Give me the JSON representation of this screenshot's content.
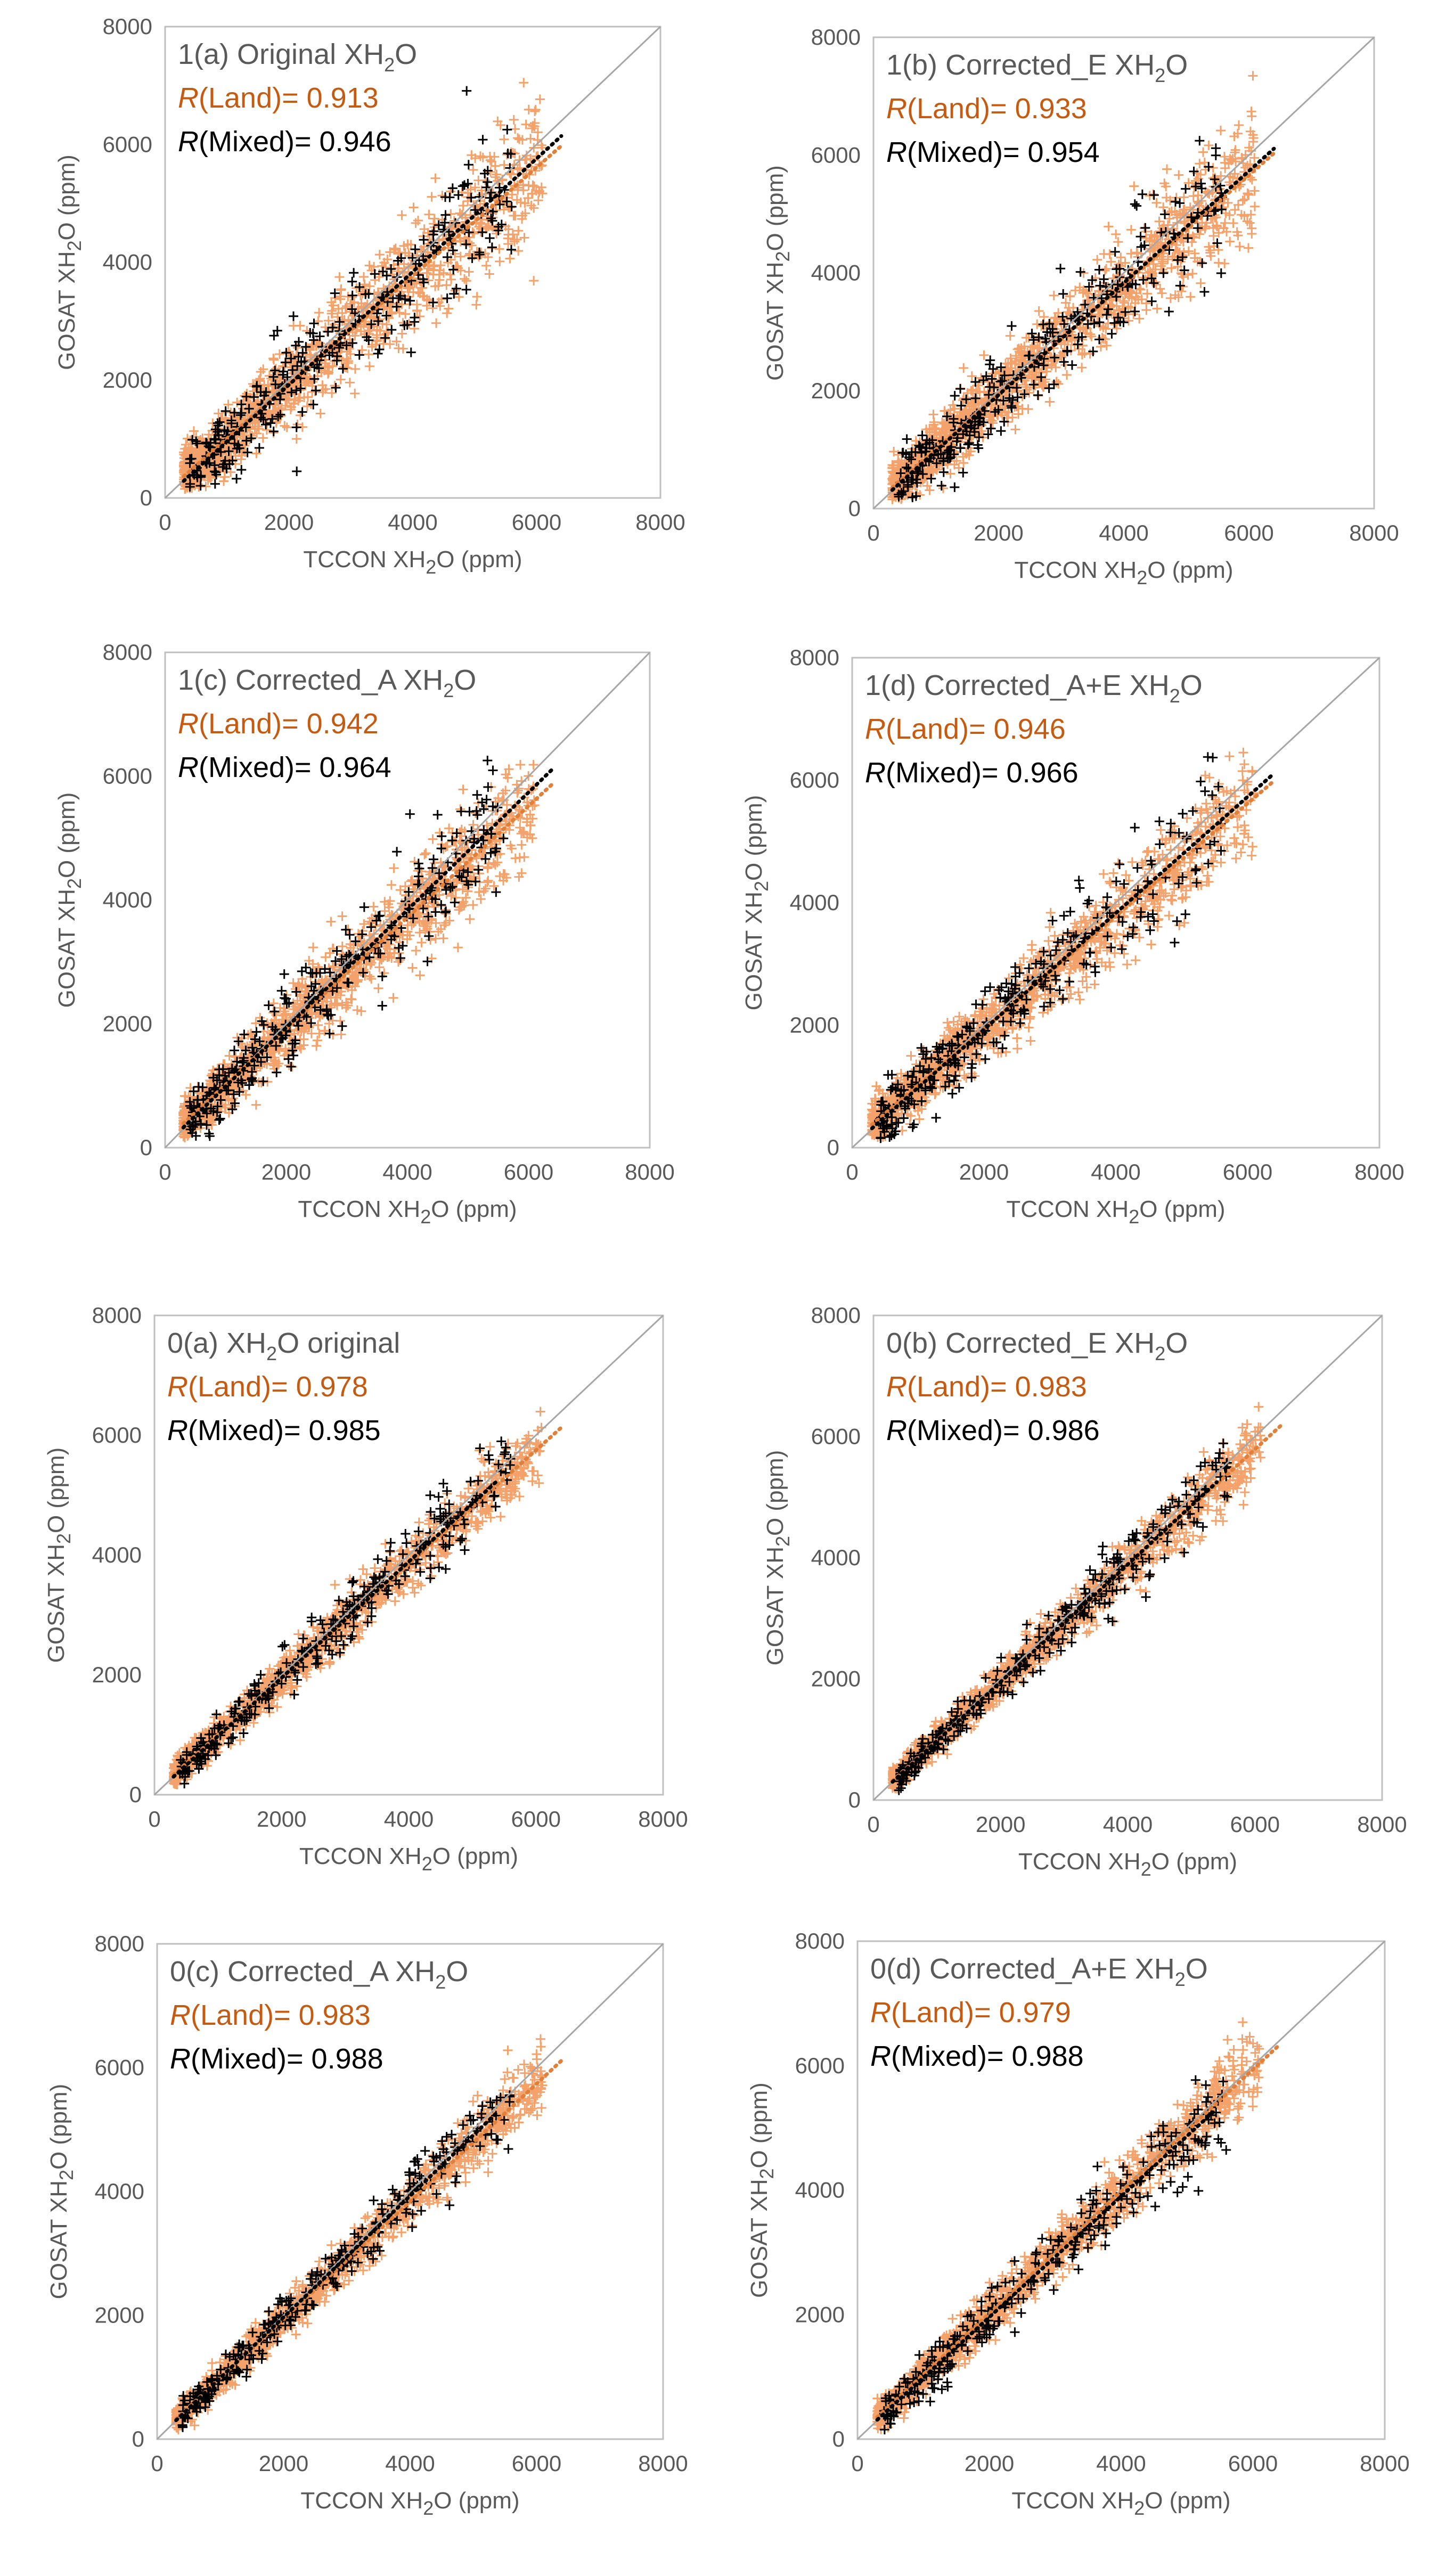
{
  "colors": {
    "land": "#f4a26b",
    "land_text": "#c55a11",
    "land_trend": "#e0803a",
    "mixed": "#000000",
    "one_to_one": "#a6a6a6",
    "frame": "#bfbfbf",
    "text": "#595959"
  },
  "chart_data": [
    {
      "id": "1a",
      "type": "scatter",
      "title_prefix": "1(a) Original XH",
      "title_sub": "2",
      "title_suffix": "O",
      "land_label": "R",
      "land_value": "(Land)= 0.913",
      "mixed_label": "R",
      "mixed_value": "(Mixed)= 0.946",
      "r_land": 0.913,
      "r_mixed": 0.946,
      "xlabel_prefix": "TCCON XH",
      "xlabel_sub": "2",
      "xlabel_suffix": "O (ppm)",
      "ylabel_prefix": "GOSAT XH",
      "ylabel_sub": "2",
      "ylabel_suffix": "O (ppm)",
      "xlim": [
        0,
        8000
      ],
      "ylim": [
        0,
        8000
      ],
      "xticks": [
        "0",
        "2000",
        "4000",
        "6000",
        "8000"
      ],
      "yticks": [
        "0",
        "2000",
        "4000",
        "6000",
        "8000"
      ],
      "trend_land": {
        "slope": 0.92,
        "intercept": 90,
        "x_end": 6400
      },
      "trend_mixed": {
        "slope": 0.96,
        "intercept": 0,
        "x_end": 6400
      },
      "scatter_spread": 430,
      "one_to_one": true
    },
    {
      "id": "1b",
      "type": "scatter",
      "title_prefix": "1(b) Corrected_E XH",
      "title_sub": "2",
      "title_suffix": "O",
      "land_label": "R",
      "land_value": "(Land)= 0.933",
      "mixed_label": "R",
      "mixed_value": "(Mixed)= 0.954",
      "r_land": 0.933,
      "r_mixed": 0.954,
      "xlabel_prefix": "TCCON XH",
      "xlabel_sub": "2",
      "xlabel_suffix": "O (ppm)",
      "ylabel_prefix": "GOSAT XH",
      "ylabel_sub": "2",
      "ylabel_suffix": "O (ppm)",
      "xlim": [
        0,
        8000
      ],
      "ylim": [
        0,
        8000
      ],
      "xticks": [
        "0",
        "2000",
        "4000",
        "6000",
        "8000"
      ],
      "yticks": [
        "0",
        "2000",
        "4000",
        "6000",
        "8000"
      ],
      "trend_land": {
        "slope": 0.93,
        "intercept": 80,
        "x_end": 6400
      },
      "trend_mixed": {
        "slope": 0.95,
        "intercept": 30,
        "x_end": 6400
      },
      "scatter_spread": 380,
      "one_to_one": true
    },
    {
      "id": "1c",
      "type": "scatter",
      "title_prefix": "1(c) Corrected_A XH",
      "title_sub": "2",
      "title_suffix": "O",
      "land_label": "R",
      "land_value": "(Land)= 0.942",
      "mixed_label": "R",
      "mixed_value": "(Mixed)= 0.964",
      "r_land": 0.942,
      "r_mixed": 0.964,
      "xlabel_prefix": "TCCON XH",
      "xlabel_sub": "2",
      "xlabel_suffix": "O (ppm)",
      "ylabel_prefix": "GOSAT XH",
      "ylabel_sub": "2",
      "ylabel_suffix": "O (ppm)",
      "xlim": [
        0,
        8000
      ],
      "ylim": [
        0,
        8000
      ],
      "xticks": [
        "0",
        "2000",
        "4000",
        "6000",
        "8000"
      ],
      "yticks": [
        "0",
        "2000",
        "4000",
        "6000",
        "8000"
      ],
      "trend_land": {
        "slope": 0.9,
        "intercept": 120,
        "x_end": 6400
      },
      "trend_mixed": {
        "slope": 0.95,
        "intercept": 40,
        "x_end": 6400
      },
      "scatter_spread": 340,
      "one_to_one": true
    },
    {
      "id": "1d",
      "type": "scatter",
      "title_prefix": "1(d) Corrected_A+E XH",
      "title_sub": "2",
      "title_suffix": "O",
      "land_label": "R",
      "land_value": "(Land)= 0.946",
      "mixed_label": "R",
      "mixed_value": "(Mixed)= 0.966",
      "r_land": 0.946,
      "r_mixed": 0.966,
      "xlabel_prefix": "TCCON XH",
      "xlabel_sub": "2",
      "xlabel_suffix": "O (ppm)",
      "ylabel_prefix": "GOSAT XH",
      "ylabel_sub": "2",
      "ylabel_suffix": "O (ppm)",
      "xlim": [
        0,
        8000
      ],
      "ylim": [
        0,
        8000
      ],
      "xticks": [
        "0",
        "2000",
        "4000",
        "6000",
        "8000"
      ],
      "yticks": [
        "0",
        "2000",
        "4000",
        "6000",
        "8000"
      ],
      "trend_land": {
        "slope": 0.92,
        "intercept": 100,
        "x_end": 6400
      },
      "trend_mixed": {
        "slope": 0.95,
        "intercept": 30,
        "x_end": 6400
      },
      "scatter_spread": 330,
      "one_to_one": true
    },
    {
      "id": "0a",
      "type": "scatter",
      "title_prefix": "0(a) XH",
      "title_sub": "2",
      "title_suffix": "O original",
      "land_label": "R",
      "land_value": "(Land)= 0.978",
      "mixed_label": "R",
      "mixed_value": "(Mixed)= 0.985",
      "r_land": 0.978,
      "r_mixed": 0.985,
      "xlabel_prefix": "TCCON XH",
      "xlabel_sub": "2",
      "xlabel_suffix": "O (ppm)",
      "ylabel_prefix": "GOSAT XH",
      "ylabel_sub": "2",
      "ylabel_suffix": "O (ppm)",
      "xlim": [
        0,
        8000
      ],
      "ylim": [
        0,
        8000
      ],
      "xticks": [
        "0",
        "2000",
        "4000",
        "6000",
        "8000"
      ],
      "yticks": [
        "0",
        "2000",
        "4000",
        "6000",
        "8000"
      ],
      "trend_land": {
        "slope": 0.95,
        "intercept": 50,
        "x_end": 6400
      },
      "trend_mixed": {
        "slope": 0.97,
        "intercept": 10,
        "x_end": 5400
      },
      "scatter_spread": 210,
      "one_to_one": true
    },
    {
      "id": "0b",
      "type": "scatter",
      "title_prefix": "0(b) Corrected_E  XH",
      "title_sub": "2",
      "title_suffix": "O",
      "land_label": "R",
      "land_value": "(Land)= 0.983",
      "mixed_label": "R",
      "mixed_value": "(Mixed)= 0.986",
      "r_land": 0.983,
      "r_mixed": 0.986,
      "xlabel_prefix": "TCCON XH",
      "xlabel_sub": "2",
      "xlabel_suffix": "O (ppm)",
      "ylabel_prefix": "GOSAT XH",
      "ylabel_sub": "2",
      "ylabel_suffix": "O (ppm)",
      "xlim": [
        0,
        8000
      ],
      "ylim": [
        0,
        8000
      ],
      "xticks": [
        "0",
        "2000",
        "4000",
        "6000",
        "8000"
      ],
      "yticks": [
        "0",
        "2000",
        "4000",
        "6000",
        "8000"
      ],
      "trend_land": {
        "slope": 0.96,
        "intercept": 30,
        "x_end": 6400
      },
      "trend_mixed": {
        "slope": 0.97,
        "intercept": 10,
        "x_end": 5400
      },
      "scatter_spread": 190,
      "one_to_one": true
    },
    {
      "id": "0c",
      "type": "scatter",
      "title_prefix": "0(c) Corrected_A XH",
      "title_sub": "2",
      "title_suffix": "O",
      "land_label": "R",
      "land_value": "(Land)= 0.983",
      "mixed_label": "R",
      "mixed_value": "(Mixed)= 0.988",
      "r_land": 0.983,
      "r_mixed": 0.988,
      "xlabel_prefix": "TCCON XH",
      "xlabel_sub": "2",
      "xlabel_suffix": "O (ppm)",
      "ylabel_prefix": "GOSAT XH",
      "ylabel_sub": "2",
      "ylabel_suffix": "O (ppm)",
      "xlim": [
        0,
        8000
      ],
      "ylim": [
        0,
        8000
      ],
      "xticks": [
        "0",
        "2000",
        "4000",
        "6000",
        "8000"
      ],
      "yticks": [
        "0",
        "2000",
        "4000",
        "6000",
        "8000"
      ],
      "trend_land": {
        "slope": 0.95,
        "intercept": 40,
        "x_end": 6400
      },
      "trend_mixed": {
        "slope": 0.98,
        "intercept": 10,
        "x_end": 5400
      },
      "scatter_spread": 190,
      "one_to_one": true
    },
    {
      "id": "0d",
      "type": "scatter",
      "title_prefix": "0(d) Corrected_A+E XH",
      "title_sub": "2",
      "title_suffix": "O",
      "land_label": "R",
      "land_value": "(Land)= 0.979",
      "mixed_label": "R",
      "mixed_value": "(Mixed)= 0.988",
      "r_land": 0.979,
      "r_mixed": 0.988,
      "xlabel_prefix": "TCCON XH",
      "xlabel_sub": "2",
      "xlabel_suffix": "O (ppm)",
      "ylabel_prefix": "GOSAT XH",
      "ylabel_sub": "2",
      "ylabel_suffix": "O (ppm)",
      "xlim": [
        0,
        8000
      ],
      "ylim": [
        0,
        8000
      ],
      "xticks": [
        "0",
        "2000",
        "4000",
        "6000",
        "8000"
      ],
      "yticks": [
        "0",
        "2000",
        "4000",
        "6000",
        "8000"
      ],
      "trend_land": {
        "slope": 0.98,
        "intercept": 60,
        "x_end": 6400
      },
      "trend_mixed": {
        "slope": 0.97,
        "intercept": 20,
        "x_end": 5400
      },
      "scatter_spread": 230,
      "one_to_one": true
    }
  ]
}
